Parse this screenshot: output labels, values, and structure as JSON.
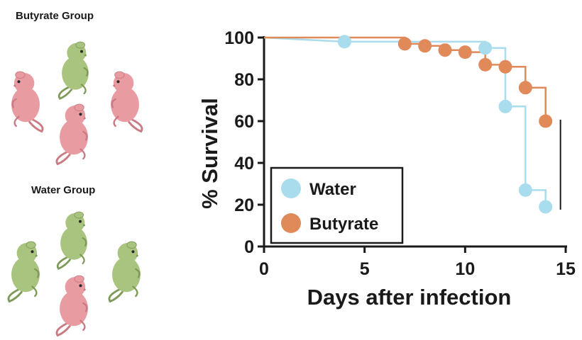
{
  "illustration": {
    "groups": [
      {
        "label": "Butyrate Group",
        "mice": [
          "green",
          "pink",
          "pink",
          "pink"
        ]
      },
      {
        "label": "Water Group",
        "mice": [
          "green",
          "green",
          "green",
          "pink"
        ]
      }
    ],
    "colors": {
      "green": "#a9c47f",
      "pink": "#e89ca2"
    }
  },
  "chart_data": {
    "type": "line",
    "subtype": "kaplan-meier",
    "xlabel": "Days after infection",
    "ylabel": "% Survival",
    "xlim": [
      0,
      15
    ],
    "ylim": [
      0,
      100
    ],
    "xticks": [
      0,
      5,
      10,
      15
    ],
    "yticks": [
      0,
      20,
      40,
      60,
      80,
      100
    ],
    "grid": false,
    "legend": {
      "placement": "bottom-left",
      "entries": [
        "Water",
        "Butyrate"
      ]
    },
    "series": [
      {
        "name": "Water",
        "color": "#a9dced",
        "steps": [
          [
            0,
            100
          ],
          [
            4,
            98
          ],
          [
            11,
            98
          ],
          [
            11,
            95
          ],
          [
            12,
            95
          ],
          [
            12,
            67
          ],
          [
            13,
            67
          ],
          [
            13,
            27
          ],
          [
            14,
            27
          ],
          [
            14,
            19
          ]
        ],
        "markers": [
          [
            4,
            98
          ],
          [
            11,
            95
          ],
          [
            12,
            67
          ],
          [
            13,
            27
          ],
          [
            14,
            19
          ]
        ]
      },
      {
        "name": "Butyrate",
        "color": "#e08a5a",
        "steps": [
          [
            0,
            100
          ],
          [
            7,
            100
          ],
          [
            7,
            97
          ],
          [
            8,
            97
          ],
          [
            8,
            96
          ],
          [
            9,
            96
          ],
          [
            9,
            94
          ],
          [
            10,
            94
          ],
          [
            10,
            93
          ],
          [
            11,
            93
          ],
          [
            11,
            87
          ],
          [
            12,
            87
          ],
          [
            12,
            86
          ],
          [
            13,
            86
          ],
          [
            13,
            76
          ],
          [
            14,
            76
          ],
          [
            14,
            60
          ]
        ],
        "markers": [
          [
            7,
            97
          ],
          [
            8,
            96
          ],
          [
            9,
            94
          ],
          [
            10,
            93
          ],
          [
            11,
            87
          ],
          [
            12,
            86
          ],
          [
            13,
            76
          ],
          [
            14,
            60
          ]
        ]
      }
    ],
    "annotations": [
      {
        "text": "****",
        "between": [
          19,
          60
        ],
        "at_x": 14.6
      }
    ]
  }
}
